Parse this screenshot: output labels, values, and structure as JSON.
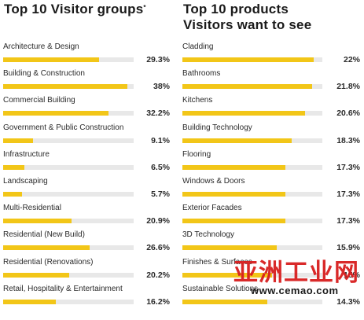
{
  "chart_data": [
    {
      "type": "bar",
      "title": "Top 10 Visitor groups",
      "title_mark": "*",
      "categories": [
        "Architecture & Design",
        "Building & Construction",
        "Commercial Building",
        "Government & Public Construction",
        "Infrastructure",
        "Landscaping",
        "Multi-Residential",
        "Residential (New Build)",
        "Residential (Renovations)",
        "Retail, Hospitality & Entertainment"
      ],
      "values": [
        29.3,
        38,
        32.2,
        9.1,
        6.5,
        5.7,
        20.9,
        26.6,
        20.2,
        16.2
      ],
      "value_labels": [
        "29.3%",
        "38%",
        "32.2%",
        "9.1%",
        "6.5%",
        "5.7%",
        "20.9%",
        "26.6%",
        "20.2%",
        "16.2%"
      ],
      "xlim": [
        0,
        40
      ],
      "bar_color": "#f2c618",
      "track_color": "#e8e8e8"
    },
    {
      "type": "bar",
      "title": "Top 10 products Visitors want to see",
      "categories": [
        "Cladding",
        "Bathrooms",
        "Kitchens",
        "Building Technology",
        "Flooring",
        "Windows & Doors",
        "Exterior Facades",
        "3D Technology",
        "Finishes & Surfaces",
        "Sustainable Solutions"
      ],
      "values": [
        22,
        21.8,
        20.6,
        18.3,
        17.3,
        17.3,
        17.3,
        15.9,
        15,
        14.3
      ],
      "value_labels": [
        "22%",
        "21.8%",
        "20.6%",
        "18.3%",
        "17.3%",
        "17.3%",
        "17.3%",
        "15.9%",
        "15%",
        "14.3%"
      ],
      "xlim": [
        0,
        23.5
      ],
      "bar_color": "#f2c618",
      "track_color": "#e8e8e8"
    }
  ],
  "watermark": {
    "text": "亚洲工业网",
    "url": "www.cemao.com"
  }
}
